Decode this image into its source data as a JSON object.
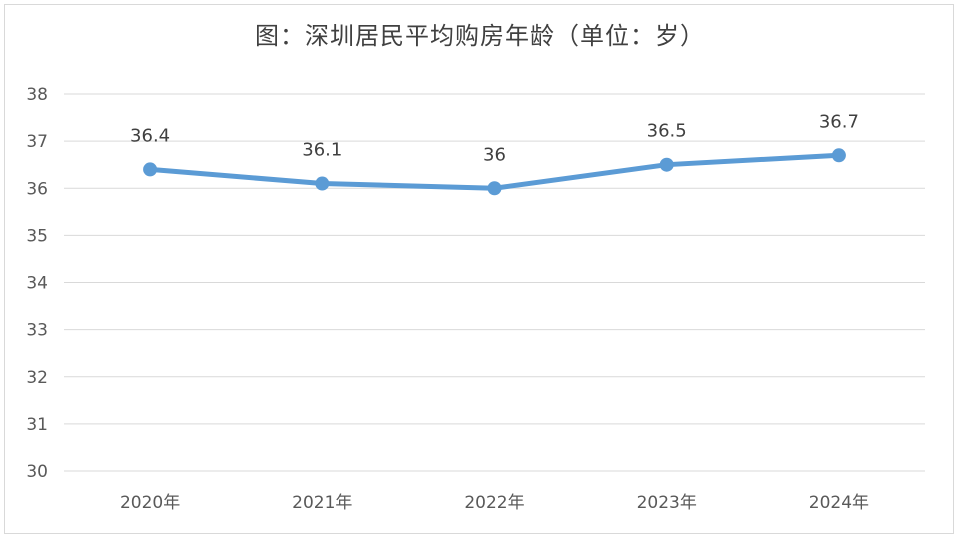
{
  "chart_data": {
    "type": "line",
    "title": "图：深圳居民平均购房年龄（单位：岁）",
    "xlabel": "",
    "ylabel": "",
    "categories": [
      "2020年",
      "2021年",
      "2022年",
      "2023年",
      "2024年"
    ],
    "values": [
      36.4,
      36.1,
      36,
      36.5,
      36.7
    ],
    "data_labels": [
      "36.4",
      "36.1",
      "36",
      "36.5",
      "36.7"
    ],
    "ylim": [
      30,
      38
    ],
    "yticks": [
      30,
      31,
      32,
      33,
      34,
      35,
      36,
      37,
      38
    ],
    "grid": true,
    "legend": "none",
    "series_color": "#5b9bd5"
  }
}
